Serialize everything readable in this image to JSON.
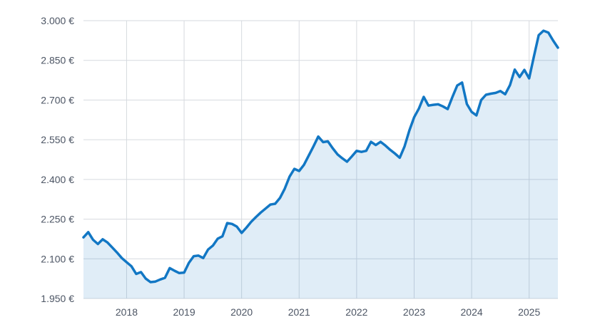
{
  "chart_data": {
    "type": "area",
    "title": "",
    "unit": "EUR",
    "legend": "none",
    "grid": true,
    "colors": {
      "line": "#1277c4",
      "fill_rgba": "rgba(18,119,196,0.13)",
      "grid": "#d6dadf",
      "label": "#4c5564",
      "background": "#ffffff"
    },
    "y_axis": {
      "min": 1950,
      "max": 3000,
      "step": 150,
      "tick_values": [
        1950,
        2100,
        2250,
        2400,
        2550,
        2700,
        2850,
        3000
      ],
      "tick_labels": [
        "1.950 €",
        "2.100 €",
        "2.250 €",
        "2.400 €",
        "2.550 €",
        "2.700 €",
        "2.850 €",
        "3.000 €"
      ]
    },
    "x_axis": {
      "domain": [
        2017.25,
        2025.5
      ],
      "tick_values": [
        2018,
        2019,
        2020,
        2021,
        2022,
        2023,
        2024,
        2025
      ],
      "tick_labels": [
        "2018",
        "2019",
        "2020",
        "2021",
        "2022",
        "2023",
        "2024",
        "2025"
      ]
    },
    "series": [
      {
        "name": "price",
        "start_month": "2017-04",
        "end_month": "2025-07",
        "interval": "monthly",
        "monthly_values": [
          2181,
          2201,
          2172,
          2156,
          2174,
          2162,
          2143,
          2124,
          2103,
          2087,
          2072,
          2043,
          2050,
          2025,
          2012,
          2014,
          2022,
          2028,
          2065,
          2055,
          2046,
          2048,
          2085,
          2110,
          2112,
          2103,
          2135,
          2150,
          2176,
          2185,
          2235,
          2232,
          2222,
          2198,
          2218,
          2240,
          2258,
          2275,
          2290,
          2305,
          2308,
          2330,
          2365,
          2410,
          2440,
          2432,
          2455,
          2490,
          2525,
          2562,
          2541,
          2544,
          2518,
          2495,
          2480,
          2467,
          2487,
          2508,
          2504,
          2508,
          2542,
          2530,
          2542,
          2528,
          2512,
          2498,
          2482,
          2525,
          2585,
          2635,
          2668,
          2712,
          2679,
          2682,
          2684,
          2676,
          2666,
          2712,
          2755,
          2766,
          2685,
          2655,
          2642,
          2700,
          2720,
          2724,
          2727,
          2734,
          2722,
          2756,
          2815,
          2787,
          2814,
          2782,
          2865,
          2945,
          2962,
          2955,
          2925,
          2898
        ]
      }
    ]
  }
}
